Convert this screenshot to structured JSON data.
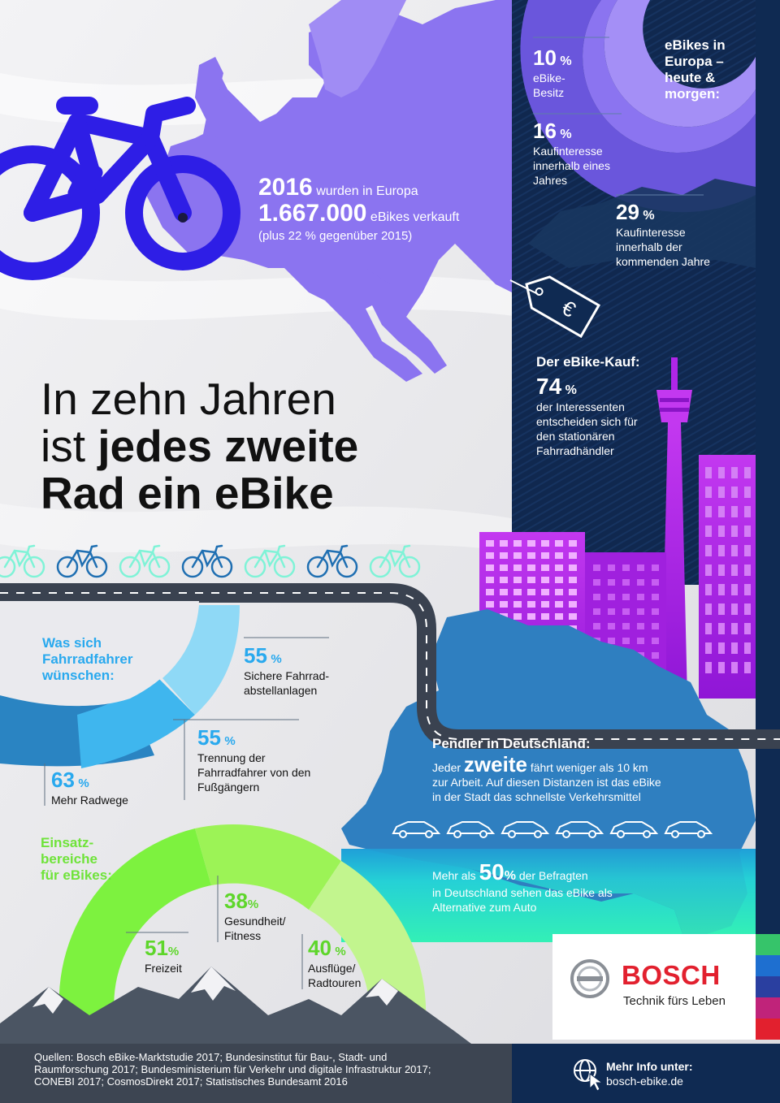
{
  "colors": {
    "violet": "#8b74f0",
    "bike_blue": "#2e1ee6",
    "navy": "#0f2a52",
    "magenta": "#b026e8",
    "cyan": "#29c3ef",
    "light_blue": "#8fd9f6",
    "green": "#7df23f",
    "light_green": "#b7f37a",
    "dark_text": "#111111",
    "road": "#3a4250",
    "teal": "#26e6c8"
  },
  "europe": {
    "year": "2016",
    "line1_rest": "wurden in Europa",
    "count": "1.667.000",
    "line2_rest": "eBikes verkauft",
    "line3": "(plus 22 % gegenüber 2015)"
  },
  "headline": {
    "line1": "In zehn Jahren",
    "line2_light": "ist",
    "line2_bold": "jedes zweite",
    "line3": "Rad ein eBike"
  },
  "europe_panel": {
    "title": "eBikes in Europa – heute & morgen:",
    "stats": [
      {
        "value": "10",
        "unit": "%",
        "label": "eBike-Besitz"
      },
      {
        "value": "16",
        "unit": "%",
        "label": "Kaufinteresse innerhalb eines Jahres"
      },
      {
        "value": "29",
        "unit": "%",
        "label": "Kaufinteresse innerhalb der kommenden Jahre"
      }
    ],
    "tag_icon": "euro-price-tag-icon"
  },
  "purchase": {
    "title": "Der eBike-Kauf:",
    "value": "74",
    "unit": "%",
    "label": "der Interessenten entscheiden sich für den stationären Fahrradhändler"
  },
  "wishes": {
    "title": "Was sich Fahrradfahrer wünschen:",
    "stats": [
      {
        "value": "55",
        "unit": "%",
        "label": "Sichere Fahrrad-abstellanlagen"
      },
      {
        "value": "55",
        "unit": "%",
        "label": "Trennung der Fahrradfahrer von den Fußgängern"
      },
      {
        "value": "63",
        "unit": "%",
        "label": "Mehr Radwege"
      }
    ]
  },
  "commuters": {
    "title": "Pendler in Deutschland:",
    "pre": "Jeder",
    "big": "zweite",
    "post": "fährt weniger als 10 km",
    "line2": "zur Arbeit. Auf diesen Distanzen ist das eBike",
    "line3": "in der Stadt das schnellste Verkehrsmittel"
  },
  "survey": {
    "pre": "Mehr als",
    "value": "50",
    "unit": "%",
    "post": "der Befragten",
    "line2": "in Deutschland sehen das eBike als",
    "line3": "Alternative zum Auto"
  },
  "usage": {
    "title": "Einsatz-bereiche für eBikes:",
    "stats": [
      {
        "value": "38",
        "unit": "%",
        "label": "Gesundheit/ Fitness"
      },
      {
        "value": "51",
        "unit": "%",
        "label": "Freizeit"
      },
      {
        "value": "40",
        "unit": "%",
        "label": "Ausflüge/ Radtouren"
      }
    ]
  },
  "brand": {
    "name": "BOSCH",
    "slogan": "Technik fürs Leben"
  },
  "sources": {
    "line1": "Quellen: Bosch eBike-Marktstudie 2017; Bundesinstitut für Bau-, Stadt- und",
    "line2": "Raumforschung 2017; Bundesministerium für Verkehr und digitale Infrastruktur 2017;",
    "line3": "CONEBI 2017; CosmosDirekt 2017; Statistisches Bundesamt 2016"
  },
  "more_info": {
    "label": "Mehr Info unter:",
    "url": "bosch-ebike.de"
  }
}
